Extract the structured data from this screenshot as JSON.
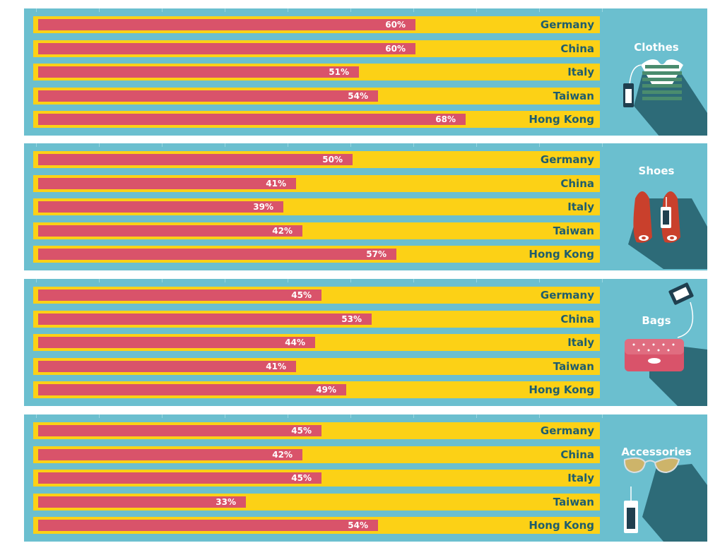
{
  "chart_data": [
    {
      "type": "bar",
      "title": "Clothes",
      "categories": [
        "Germany",
        "China",
        "Italy",
        "Taiwan",
        "Hong Kong"
      ],
      "values": [
        60,
        60,
        51,
        54,
        68
      ],
      "labels": [
        "60%",
        "60%",
        "51%",
        "54%",
        "68%"
      ],
      "xlim": [
        0,
        90
      ],
      "orientation": "horizontal",
      "icon": "t-shirt-icon"
    },
    {
      "type": "bar",
      "title": "Shoes",
      "categories": [
        "Germany",
        "China",
        "Italy",
        "Taiwan",
        "Hong Kong"
      ],
      "values": [
        50,
        41,
        39,
        42,
        57
      ],
      "labels": [
        "50%",
        "41%",
        "39%",
        "42%",
        "57%"
      ],
      "xlim": [
        0,
        90
      ],
      "orientation": "horizontal",
      "icon": "shoes-icon"
    },
    {
      "type": "bar",
      "title": "Bags",
      "categories": [
        "Germany",
        "China",
        "Italy",
        "Taiwan",
        "Hong Kong"
      ],
      "values": [
        45,
        53,
        44,
        41,
        49
      ],
      "labels": [
        "45%",
        "53%",
        "44%",
        "41%",
        "49%"
      ],
      "xlim": [
        0,
        90
      ],
      "orientation": "horizontal",
      "icon": "handbag-icon"
    },
    {
      "type": "bar",
      "title": "Accessories",
      "categories": [
        "Germany",
        "China",
        "Italy",
        "Taiwan",
        "Hong Kong"
      ],
      "values": [
        45,
        42,
        45,
        33,
        54
      ],
      "labels": [
        "45%",
        "42%",
        "45%",
        "33%",
        "54%"
      ],
      "xlim": [
        0,
        90
      ],
      "orientation": "horizontal",
      "icon": "sunglasses-icon"
    }
  ],
  "colors": {
    "panel": "#6bbfcf",
    "track": "#fcd116",
    "bar": "#d9536a",
    "country_text": "#1f5d6d",
    "shadow": "#2d6b78"
  }
}
